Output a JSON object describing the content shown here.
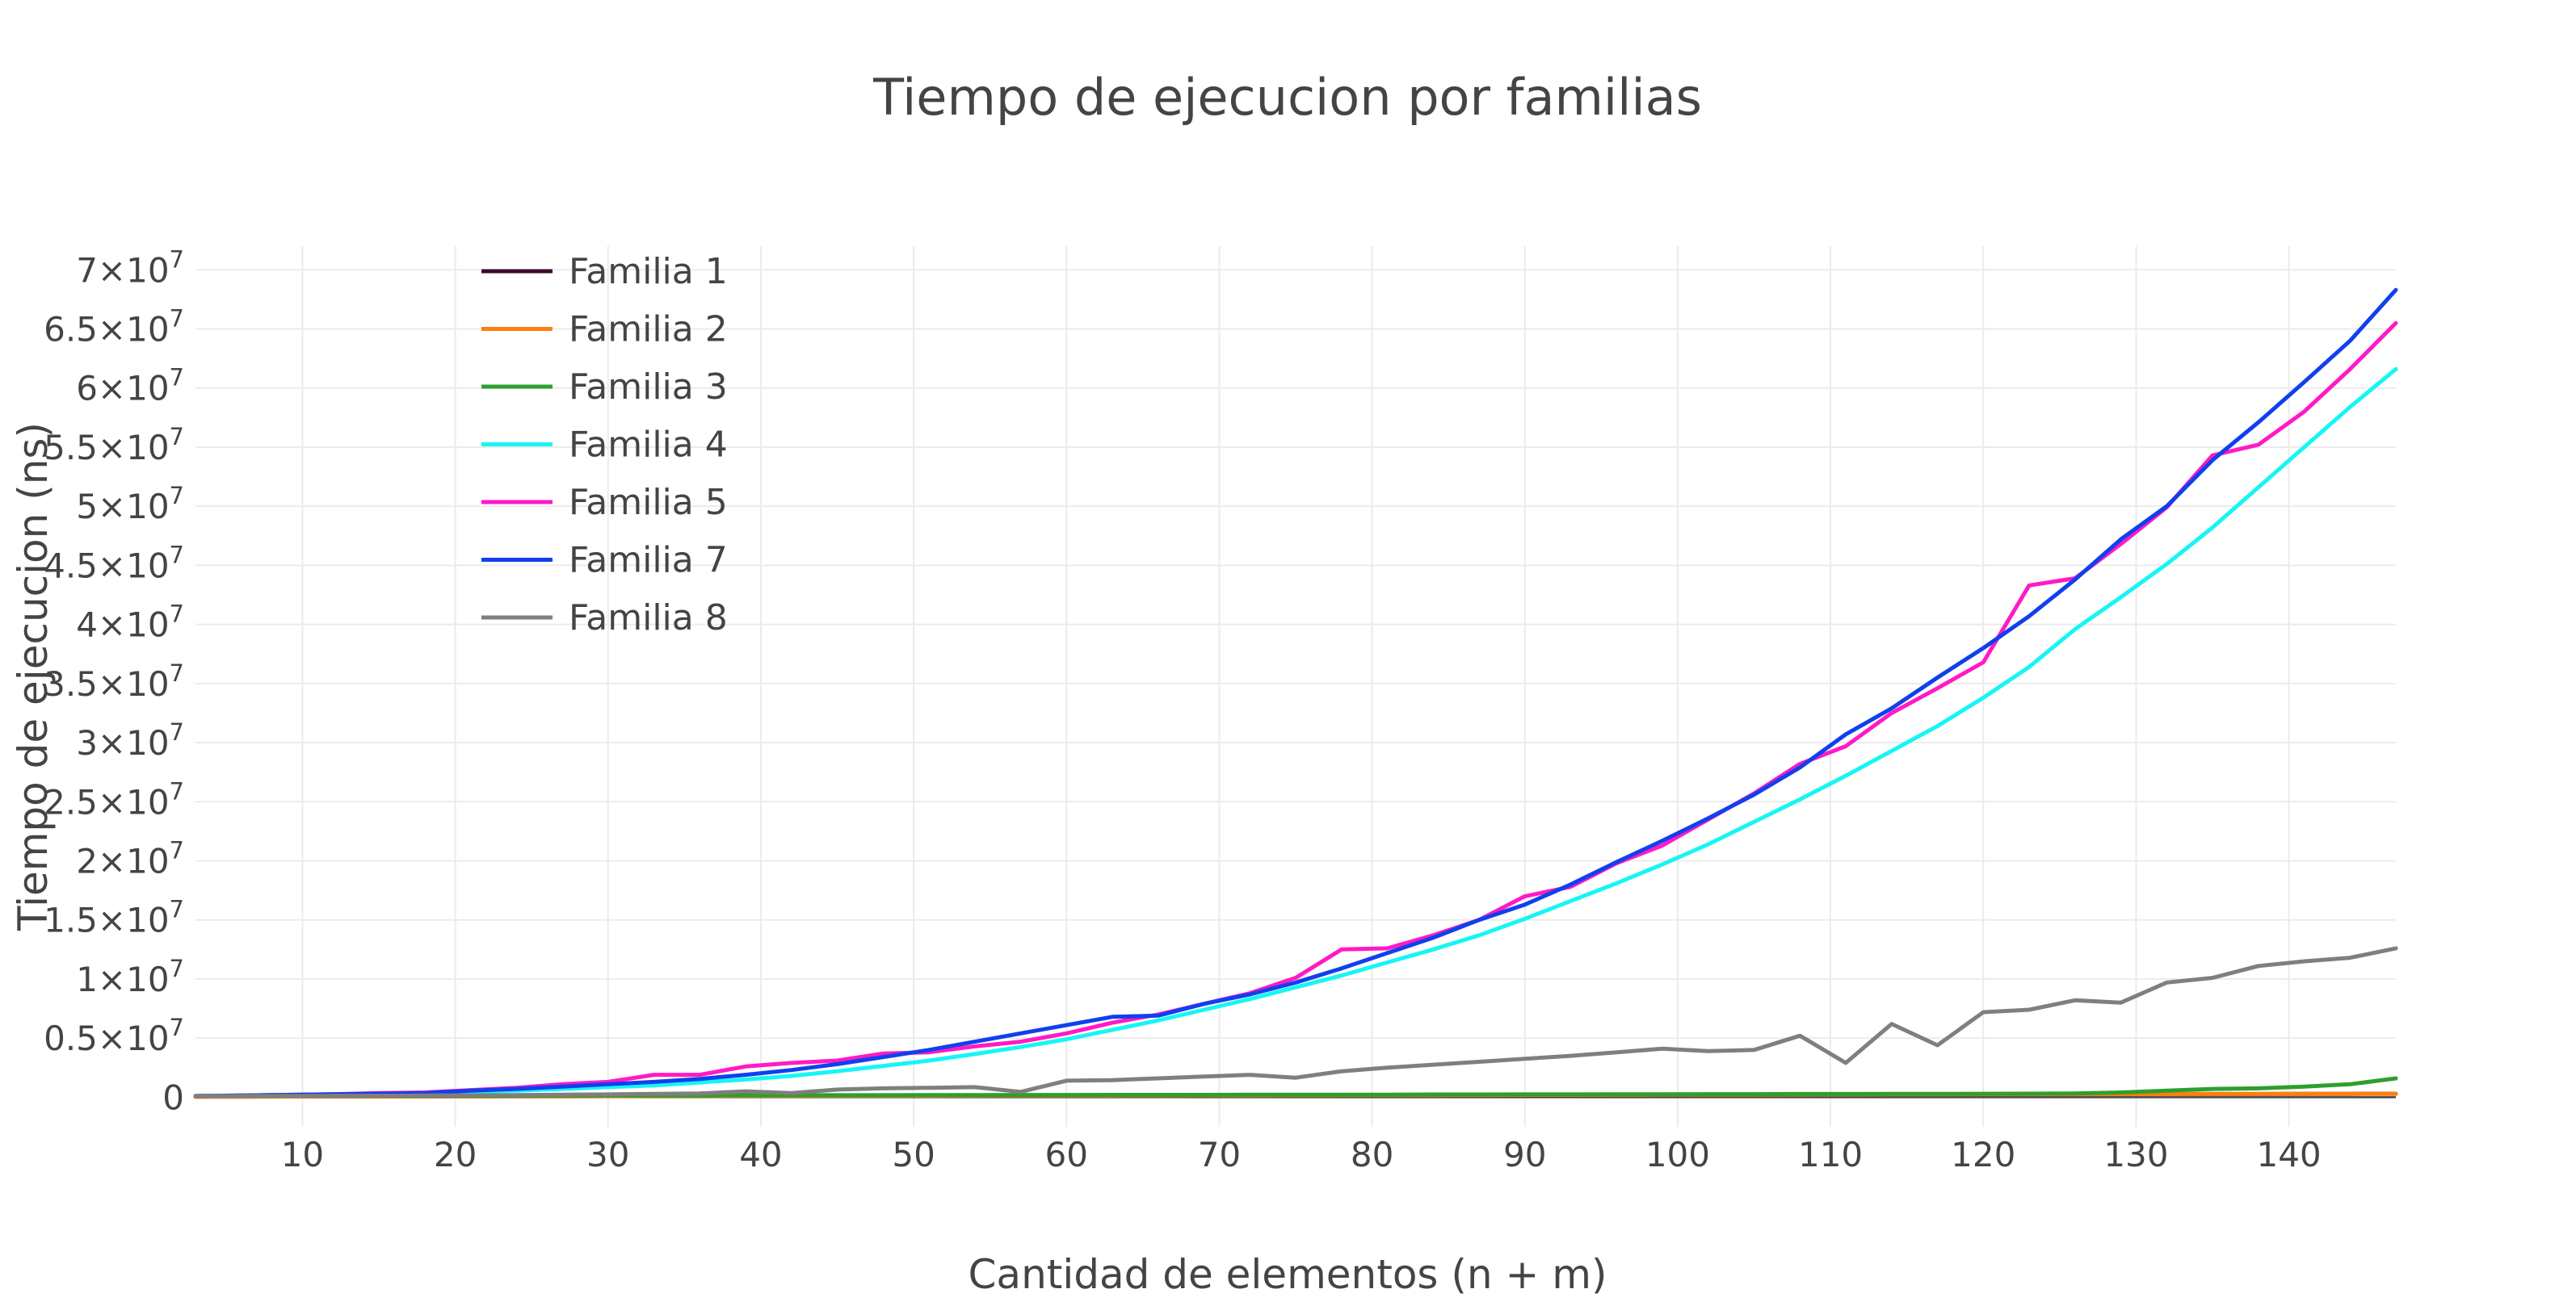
{
  "chart_data": {
    "type": "line",
    "title": "Tiempo de ejecucion por familias",
    "xlabel": "Cantidad de elementos (n + m)",
    "ylabel": "Tiempo de ejecucion (ns)",
    "xlim": [
      3,
      147
    ],
    "ylim": [
      -2500000,
      72000000
    ],
    "grid": true,
    "legend": "top-left",
    "x_ticks": [
      10,
      20,
      30,
      40,
      50,
      60,
      70,
      80,
      90,
      100,
      110,
      120,
      130,
      140
    ],
    "x_tick_labels": [
      "10",
      "20",
      "30",
      "40",
      "50",
      "60",
      "70",
      "80",
      "90",
      "100",
      "110",
      "120",
      "130",
      "140"
    ],
    "y_ticks": [
      {
        "value": 0,
        "mantissa": "0",
        "exp": ""
      },
      {
        "value": 5000000,
        "mantissa": "0.5×10",
        "exp": "7"
      },
      {
        "value": 10000000,
        "mantissa": "1×10",
        "exp": "7"
      },
      {
        "value": 15000000,
        "mantissa": "1.5×10",
        "exp": "7"
      },
      {
        "value": 20000000,
        "mantissa": "2×10",
        "exp": "7"
      },
      {
        "value": 25000000,
        "mantissa": "2.5×10",
        "exp": "7"
      },
      {
        "value": 30000000,
        "mantissa": "3×10",
        "exp": "7"
      },
      {
        "value": 35000000,
        "mantissa": "3.5×10",
        "exp": "7"
      },
      {
        "value": 40000000,
        "mantissa": "4×10",
        "exp": "7"
      },
      {
        "value": 45000000,
        "mantissa": "4.5×10",
        "exp": "7"
      },
      {
        "value": 50000000,
        "mantissa": "5×10",
        "exp": "7"
      },
      {
        "value": 55000000,
        "mantissa": "5.5×10",
        "exp": "7"
      },
      {
        "value": 60000000,
        "mantissa": "6×10",
        "exp": "7"
      },
      {
        "value": 65000000,
        "mantissa": "6.5×10",
        "exp": "7"
      },
      {
        "value": 70000000,
        "mantissa": "7×10",
        "exp": "7"
      }
    ],
    "x": [
      3,
      6,
      9,
      12,
      15,
      18,
      21,
      24,
      27,
      30,
      33,
      36,
      39,
      42,
      45,
      48,
      51,
      54,
      57,
      60,
      63,
      66,
      69,
      72,
      75,
      78,
      81,
      84,
      87,
      90,
      93,
      96,
      99,
      102,
      105,
      108,
      111,
      114,
      117,
      120,
      123,
      126,
      129,
      132,
      135,
      138,
      141,
      144,
      147
    ],
    "series": [
      {
        "name": "Familia 1",
        "color": "#3d0a2e",
        "values": [
          50000,
          55000,
          60000,
          65000,
          70000,
          75000,
          80000,
          85000,
          90000,
          95000,
          100000,
          105000,
          110000,
          115000,
          120000,
          125000,
          130000,
          135000,
          140000,
          145000,
          150000,
          155000,
          160000,
          165000,
          170000,
          175000,
          180000,
          185000,
          190000,
          195000,
          200000,
          205000,
          210000,
          215000,
          220000,
          225000,
          230000,
          235000,
          240000,
          245000,
          250000,
          255000,
          260000,
          265000,
          270000,
          275000,
          280000,
          285000,
          290000
        ]
      },
      {
        "name": "Familia 2",
        "color": "#ff7f0e",
        "values": [
          50000,
          55000,
          60000,
          65000,
          70000,
          75000,
          80000,
          85000,
          90000,
          95000,
          100000,
          105000,
          110000,
          115000,
          120000,
          125000,
          130000,
          135000,
          140000,
          145000,
          150000,
          155000,
          160000,
          165000,
          170000,
          175000,
          180000,
          185000,
          190000,
          195000,
          200000,
          205000,
          210000,
          215000,
          220000,
          225000,
          230000,
          235000,
          240000,
          245000,
          250000,
          255000,
          260000,
          265000,
          270000,
          275000,
          280000,
          285000,
          290000
        ]
      },
      {
        "name": "Familia 3",
        "color": "#2ca02c",
        "values": [
          100000,
          100000,
          110000,
          110000,
          120000,
          120000,
          130000,
          130000,
          140000,
          140000,
          150000,
          150000,
          160000,
          160000,
          170000,
          170000,
          180000,
          180000,
          190000,
          190000,
          200000,
          200000,
          200000,
          210000,
          210000,
          220000,
          220000,
          230000,
          230000,
          240000,
          240000,
          250000,
          250000,
          260000,
          260000,
          270000,
          270000,
          280000,
          280000,
          290000,
          300000,
          320000,
          400000,
          550000,
          700000,
          750000,
          900000,
          1100000,
          1600000
        ]
      },
      {
        "name": "Familia 4",
        "color": "#17f5f5",
        "values": [
          100000,
          150000,
          200000,
          250000,
          300000,
          350000,
          450000,
          550000,
          700000,
          850000,
          1000000,
          1250000,
          1500000,
          1800000,
          2200000,
          2650000,
          3100000,
          3650000,
          4250000,
          4900000,
          5700000,
          6500000,
          7400000,
          8300000,
          9300000,
          10300000,
          11400000,
          12500000,
          13700000,
          15100000,
          16600000,
          18100000,
          19700000,
          21400000,
          23300000,
          25200000,
          27200000,
          29300000,
          31400000,
          33800000,
          36400000,
          39600000,
          42300000,
          45100000,
          48200000,
          51600000,
          55000000,
          58400000,
          61600000
        ]
      },
      {
        "name": "Familia 5",
        "color": "#ff1ac6",
        "values": [
          100000,
          150000,
          200000,
          250000,
          350000,
          400000,
          600000,
          800000,
          1100000,
          1300000,
          1900000,
          1900000,
          2600000,
          2900000,
          3100000,
          3700000,
          3800000,
          4300000,
          4700000,
          5400000,
          6300000,
          7000000,
          7900000,
          8800000,
          10100000,
          12500000,
          12600000,
          13700000,
          15000000,
          17000000,
          17800000,
          19800000,
          21300000,
          23500000,
          25700000,
          28200000,
          29700000,
          32500000,
          34600000,
          36800000,
          43300000,
          43900000,
          46800000,
          49900000,
          54300000,
          55200000,
          58000000,
          61600000,
          65500000
        ]
      },
      {
        "name": "Familia 7",
        "color": "#1040ee",
        "values": [
          100000,
          150000,
          200000,
          250000,
          300000,
          350000,
          550000,
          700000,
          900000,
          1100000,
          1300000,
          1550000,
          1900000,
          2300000,
          2800000,
          3400000,
          4000000,
          4700000,
          5400000,
          6100000,
          6800000,
          6900000,
          7900000,
          8700000,
          9700000,
          10900000,
          12200000,
          13500000,
          15000000,
          16300000,
          18000000,
          19900000,
          21700000,
          23600000,
          25600000,
          27900000,
          30700000,
          32900000,
          35500000,
          38000000,
          40700000,
          43800000,
          47200000,
          50000000,
          53900000,
          57100000,
          60500000,
          64000000,
          68300000
        ]
      },
      {
        "name": "Familia 8",
        "color": "#7f7f7f",
        "values": [
          100000,
          100000,
          110000,
          120000,
          130000,
          140000,
          160000,
          180000,
          210000,
          240000,
          280000,
          320000,
          500000,
          350000,
          650000,
          750000,
          800000,
          850000,
          450000,
          1400000,
          1450000,
          1600000,
          1750000,
          1900000,
          1650000,
          2200000,
          2500000,
          2750000,
          3000000,
          3250000,
          3500000,
          3800000,
          4100000,
          3900000,
          4000000,
          5200000,
          2900000,
          6200000,
          4400000,
          7200000,
          7400000,
          8200000,
          8000000,
          9700000,
          10100000,
          11100000,
          11500000,
          11800000,
          12600000
        ]
      }
    ]
  }
}
